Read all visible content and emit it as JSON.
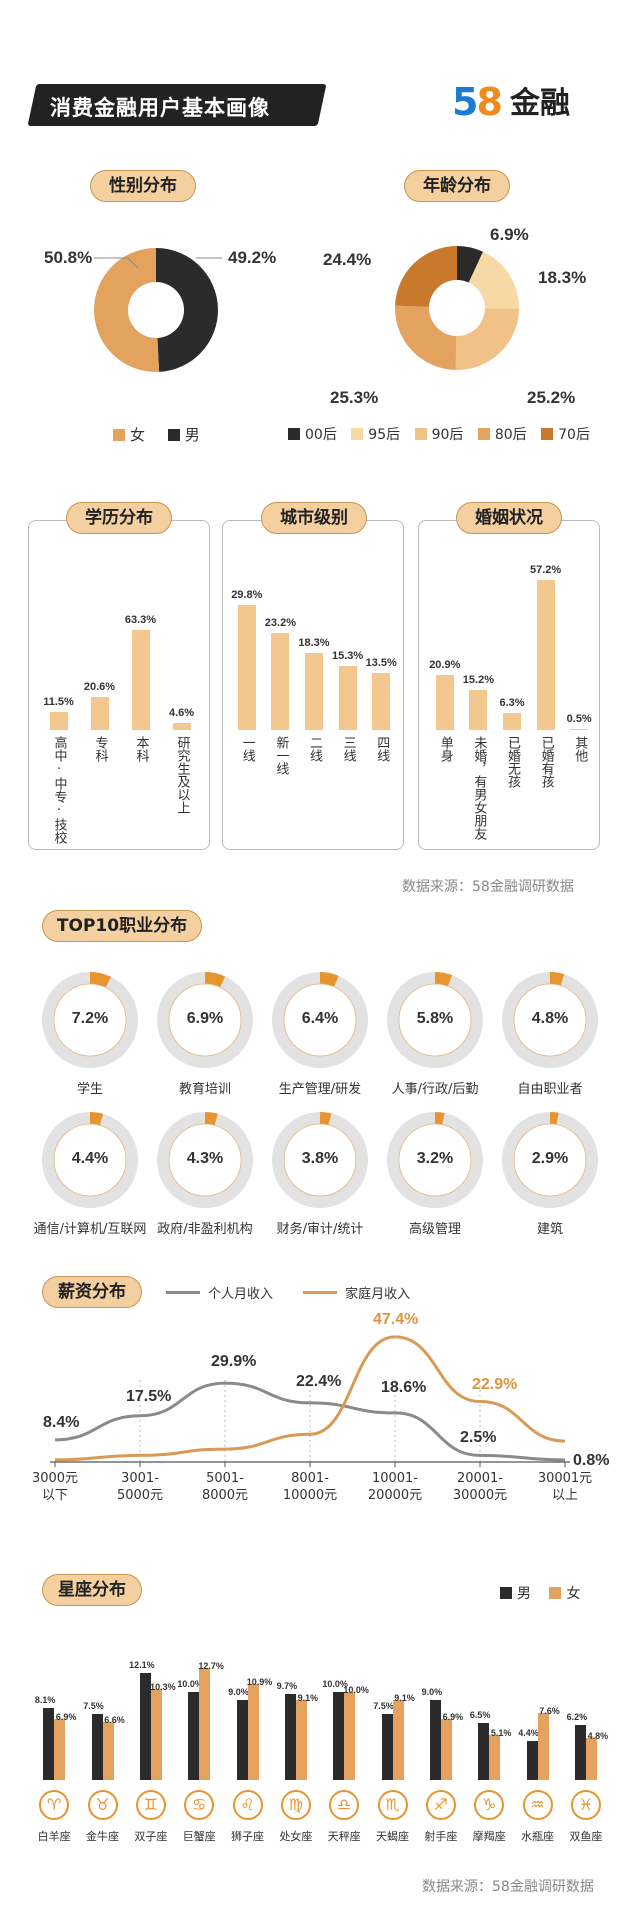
{
  "header": {
    "title": "消费金融用户基本画像",
    "logo_num_5": "5",
    "logo_num_8": "8",
    "logo_text": "金融"
  },
  "colors": {
    "dark": "#2b2b2b",
    "orange": "#e8952f",
    "tan": "#e3a35f",
    "light_tan": "#f3c88e",
    "peach": "#f6d9a4",
    "brown": "#c9792c",
    "grey": "#e2e2e2"
  },
  "gender": {
    "title": "性别分布",
    "chart_data": {
      "type": "pie",
      "categories": [
        "女",
        "男"
      ],
      "values": [
        50.8,
        49.2
      ],
      "labels": [
        "50.8%",
        "49.2%"
      ]
    }
  },
  "age": {
    "title": "年龄分布",
    "chart_data": {
      "type": "pie",
      "categories": [
        "00后",
        "95后",
        "90后",
        "80后",
        "70后"
      ],
      "values": [
        6.9,
        18.3,
        25.2,
        25.3,
        24.4
      ],
      "labels": [
        "6.9%",
        "18.3%",
        "25.2%",
        "25.3%",
        "24.4%"
      ]
    }
  },
  "education": {
    "title": "学历分布",
    "chart_data": {
      "type": "bar",
      "categories": [
        "高中/中专/技校",
        "专科",
        "本科",
        "研究生及以上"
      ],
      "display": [
        "高中·中专·技校",
        "专科",
        "本科",
        "研究生及以上"
      ],
      "values": [
        11.5,
        20.6,
        63.3,
        4.6
      ],
      "labels": [
        "11.5%",
        "20.6%",
        "63.3%",
        "4.6%"
      ]
    }
  },
  "city": {
    "title": "城市级别",
    "chart_data": {
      "type": "bar",
      "categories": [
        "一线",
        "新一线",
        "二线",
        "三线",
        "四线"
      ],
      "values": [
        29.8,
        23.2,
        18.3,
        15.3,
        13.5
      ],
      "labels": [
        "29.8%",
        "23.2%",
        "18.3%",
        "15.3%",
        "13.5%"
      ]
    }
  },
  "marriage": {
    "title": "婚姻状况",
    "chart_data": {
      "type": "bar",
      "categories": [
        "单身",
        "未婚，有男女朋友",
        "已婚无孩",
        "已婚有孩",
        "其他"
      ],
      "values": [
        20.9,
        15.2,
        6.3,
        57.2,
        0.5
      ],
      "labels": [
        "20.9%",
        "15.2%",
        "6.3%",
        "57.2%",
        "0.5%"
      ]
    }
  },
  "source_text": "数据来源：58金融调研数据",
  "occupation": {
    "title": "TOP10职业分布",
    "chart_data": {
      "type": "pie",
      "categories": [
        "学生",
        "教育培训",
        "生产管理/研发",
        "人事/行政/后勤",
        "自由职业者",
        "通信/计算机/互联网",
        "政府/非盈利机构",
        "财务/审计/统计",
        "高级管理",
        "建筑"
      ],
      "values": [
        7.2,
        6.9,
        6.4,
        5.8,
        4.8,
        4.4,
        4.3,
        3.8,
        3.2,
        2.9
      ],
      "labels": [
        "7.2%",
        "6.9%",
        "6.4%",
        "5.8%",
        "4.8%",
        "4.4%",
        "4.3%",
        "3.8%",
        "3.2%",
        "2.9%"
      ]
    }
  },
  "salary": {
    "title": "薪资分布",
    "legend": [
      "个人月收入",
      "家庭月收入"
    ],
    "chart_data": {
      "type": "line",
      "categories": [
        "3000元以下",
        "3001-5000元",
        "5001-8000元",
        "8001-10000元",
        "10001-20000元",
        "20001-30000元",
        "30001元以上"
      ],
      "cat_lines": [
        [
          "3000元",
          "以下"
        ],
        [
          "3001-",
          "5000元"
        ],
        [
          "5001-",
          "8000元"
        ],
        [
          "8001-",
          "10000元"
        ],
        [
          "10001-",
          "20000元"
        ],
        [
          "20001-",
          "30000元"
        ],
        [
          "30001元",
          "以上"
        ]
      ],
      "series": [
        {
          "name": "个人月收入",
          "values": [
            8.4,
            17.5,
            29.9,
            22.4,
            18.6,
            2.5,
            0.8
          ],
          "labels": [
            "8.4%",
            "17.5%",
            "29.9%",
            "22.4%",
            "18.6%",
            "2.5%",
            "0.8%"
          ]
        },
        {
          "name": "家庭月收入",
          "values": [
            0.8,
            2.5,
            4.9,
            10.5,
            47.4,
            22.9,
            7.9
          ],
          "labels": [
            "",
            "",
            "",
            "",
            "47.4%",
            "22.9%",
            ""
          ]
        }
      ]
    }
  },
  "zodiac": {
    "title": "星座分布",
    "legend": [
      "男",
      "女"
    ],
    "chart_data": {
      "type": "bar",
      "categories": [
        "白羊座",
        "金牛座",
        "双子座",
        "巨蟹座",
        "狮子座",
        "处女座",
        "天秤座",
        "天蝎座",
        "射手座",
        "摩羯座",
        "水瓶座",
        "双鱼座"
      ],
      "glyphs": [
        "♈",
        "♉",
        "♊",
        "♋",
        "♌",
        "♍",
        "♎",
        "♏",
        "♐",
        "♑",
        "♒",
        "♓"
      ],
      "series": [
        {
          "name": "男",
          "values": [
            8.1,
            7.5,
            12.1,
            10.0,
            9.0,
            9.7,
            10.0,
            7.5,
            9.0,
            6.5,
            4.4,
            6.2
          ],
          "labels": [
            "8.1%",
            "7.5%",
            "12.1%",
            "10.0%",
            "9.0%",
            "9.7%",
            "10.0%",
            "7.5%",
            "9.0%",
            "6.5%",
            "4.4%",
            "6.2%"
          ]
        },
        {
          "name": "女",
          "values": [
            6.9,
            6.6,
            10.3,
            12.7,
            10.9,
            9.1,
            10.0,
            9.1,
            6.9,
            5.1,
            7.6,
            4.8
          ],
          "labels": [
            "6.9%",
            "6.6%",
            "10.3%",
            "12.7%",
            "10.9%",
            "9.1%",
            "10.0%",
            "9.1%",
            "6.9%",
            "5.1%",
            "7.6%",
            "4.8%"
          ]
        }
      ]
    }
  }
}
